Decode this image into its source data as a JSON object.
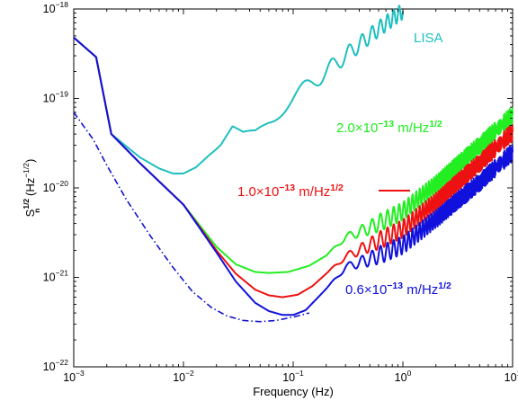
{
  "chart_data": {
    "type": "line",
    "title": "",
    "xlabel": "Frequency (Hz)",
    "ylabel": {
      "base": "S",
      "sup": "1/2",
      "sub": "n",
      "unit_open": " (Hz",
      "unit_sup": "−1/2",
      "unit_close": ")"
    },
    "x_scale": "log",
    "y_scale": "log",
    "xlim": [
      0.001,
      10
    ],
    "ylim": [
      1e-22,
      1e-18
    ],
    "grid": false,
    "x_ticks": [
      {
        "base": "10",
        "exp": "−3",
        "value": 0.001
      },
      {
        "base": "10",
        "exp": "−2",
        "value": 0.01
      },
      {
        "base": "10",
        "exp": "−1",
        "value": 0.1
      },
      {
        "base": "10",
        "exp": "0",
        "value": 1
      },
      {
        "base": "10",
        "exp": "1",
        "value": 10
      }
    ],
    "y_ticks": [
      {
        "base": "10",
        "exp": "−22",
        "value": 1e-22
      },
      {
        "base": "10",
        "exp": "−21",
        "value": 1e-21
      },
      {
        "base": "10",
        "exp": "−20",
        "value": 1e-20
      },
      {
        "base": "10",
        "exp": "−19",
        "value": 1e-19
      },
      {
        "base": "10",
        "exp": "−18",
        "value": 1e-18
      }
    ],
    "series": [
      {
        "name": "LISA",
        "color": "#1fbfbf",
        "style": "solid",
        "x": [
          0.001,
          0.0016,
          0.0022,
          0.004,
          0.006,
          0.008,
          0.01,
          0.013,
          0.017,
          0.022,
          0.028,
          0.035,
          0.045,
          0.06,
          0.09,
          0.15,
          0.3,
          0.6,
          1.0
        ],
        "y": [
          4.8e-19,
          2.9e-19,
          4e-20,
          2.2e-20,
          1.65e-20,
          1.45e-20,
          1.45e-20,
          1.7e-20,
          2.3e-20,
          3e-20,
          4.6e-20,
          3.9e-20,
          4.2e-20,
          6e-20,
          9e-20,
          1.5e-19,
          3e-19,
          6e-19,
          9.5e-19
        ],
        "ripple": {
          "from": 0.02,
          "amp": 0.09
        }
      },
      {
        "name": "2.0×10^-13 m/Hz^1/2",
        "color": "#22ee22",
        "style": "solid",
        "x": [
          0.001,
          0.0016,
          0.0022,
          0.004,
          0.01,
          0.02,
          0.03,
          0.045,
          0.06,
          0.09,
          0.14,
          0.2,
          0.3,
          0.5,
          1.0,
          2.0,
          5.0,
          10.0
        ],
        "y": [
          4.8e-19,
          2.9e-19,
          4e-20,
          1.9e-20,
          6.5e-21,
          2.2e-21,
          1.4e-21,
          1.15e-21,
          1.12e-21,
          1.15e-21,
          1.35e-21,
          1.75e-21,
          2.8e-21,
          3.6e-21,
          5.5e-21,
          1.1e-20,
          3e-20,
          6.5e-20
        ],
        "ripple": {
          "from": 0.2,
          "amp": 0.1
        }
      },
      {
        "name": "1.0×10^-13 m/Hz^1/2",
        "color": "#ee1111",
        "style": "solid",
        "x": [
          0.001,
          0.0016,
          0.0022,
          0.004,
          0.01,
          0.02,
          0.03,
          0.045,
          0.06,
          0.08,
          0.11,
          0.15,
          0.2,
          0.3,
          0.5,
          1.0,
          2.0,
          5.0,
          10.0
        ],
        "y": [
          4.8e-19,
          2.9e-19,
          4e-20,
          1.9e-20,
          6.5e-21,
          2e-21,
          1.1e-21,
          7.3e-22,
          6.3e-22,
          6e-22,
          6.4e-22,
          8e-22,
          1.1e-21,
          1.7e-21,
          2.3e-21,
          3.5e-21,
          7e-21,
          1.9e-20,
          4.2e-20
        ],
        "ripple": {
          "from": 0.2,
          "amp": 0.1
        }
      },
      {
        "name": "0.6×10^-13 m/Hz^1/2",
        "color": "#1111dd",
        "style": "solid",
        "x": [
          0.001,
          0.0016,
          0.0022,
          0.004,
          0.01,
          0.02,
          0.03,
          0.045,
          0.06,
          0.08,
          0.1,
          0.13,
          0.18,
          0.25,
          0.3,
          0.5,
          1.0,
          2.0,
          5.0,
          10.0
        ],
        "y": [
          4.8e-19,
          2.9e-19,
          4e-20,
          1.9e-20,
          6.5e-21,
          1.9e-21,
          9e-22,
          5.2e-22,
          4.2e-22,
          3.8e-22,
          3.8e-22,
          4.3e-22,
          6.5e-22,
          1e-21,
          1.3e-21,
          1.6e-21,
          2.3e-21,
          4.5e-21,
          1.15e-20,
          2.5e-20
        ],
        "ripple": {
          "from": 0.2,
          "amp": 0.1
        }
      },
      {
        "name": "dash-dot",
        "color": "#1111cc",
        "style": "dashdot",
        "x": [
          0.001,
          0.0015,
          0.002,
          0.003,
          0.005,
          0.008,
          0.012,
          0.018,
          0.025,
          0.035,
          0.05,
          0.07,
          0.1,
          0.14
        ],
        "y": [
          7e-20,
          3.5e-20,
          1.8e-20,
          7.5e-21,
          2.9e-21,
          1.3e-21,
          7e-22,
          4.6e-22,
          3.7e-22,
          3.3e-22,
          3.2e-22,
          3.3e-22,
          3.6e-22,
          4e-22
        ],
        "ripple": null
      }
    ],
    "annotations": [
      {
        "id": "lisa",
        "parts": [
          {
            "t": "LISA"
          }
        ],
        "color": "#1fbfbf"
      },
      {
        "id": "green",
        "parts": [
          {
            "t": "2.0×10"
          },
          {
            "t": "−13",
            "sup": true
          },
          {
            "t": "  m/Hz"
          },
          {
            "t": "1/2",
            "sup": true
          }
        ],
        "color": "#22ee22"
      },
      {
        "id": "red",
        "parts": [
          {
            "t": "1.0×10"
          },
          {
            "t": "−13",
            "sup": true
          },
          {
            "t": "  m/Hz"
          },
          {
            "t": "1/2",
            "sup": true
          }
        ],
        "color": "#ee1111"
      },
      {
        "id": "blue",
        "parts": [
          {
            "t": "0.6×10"
          },
          {
            "t": "−13",
            "sup": true
          },
          {
            "t": "  m/Hz"
          },
          {
            "t": "1/2",
            "sup": true
          }
        ],
        "color": "#1111dd"
      }
    ]
  }
}
